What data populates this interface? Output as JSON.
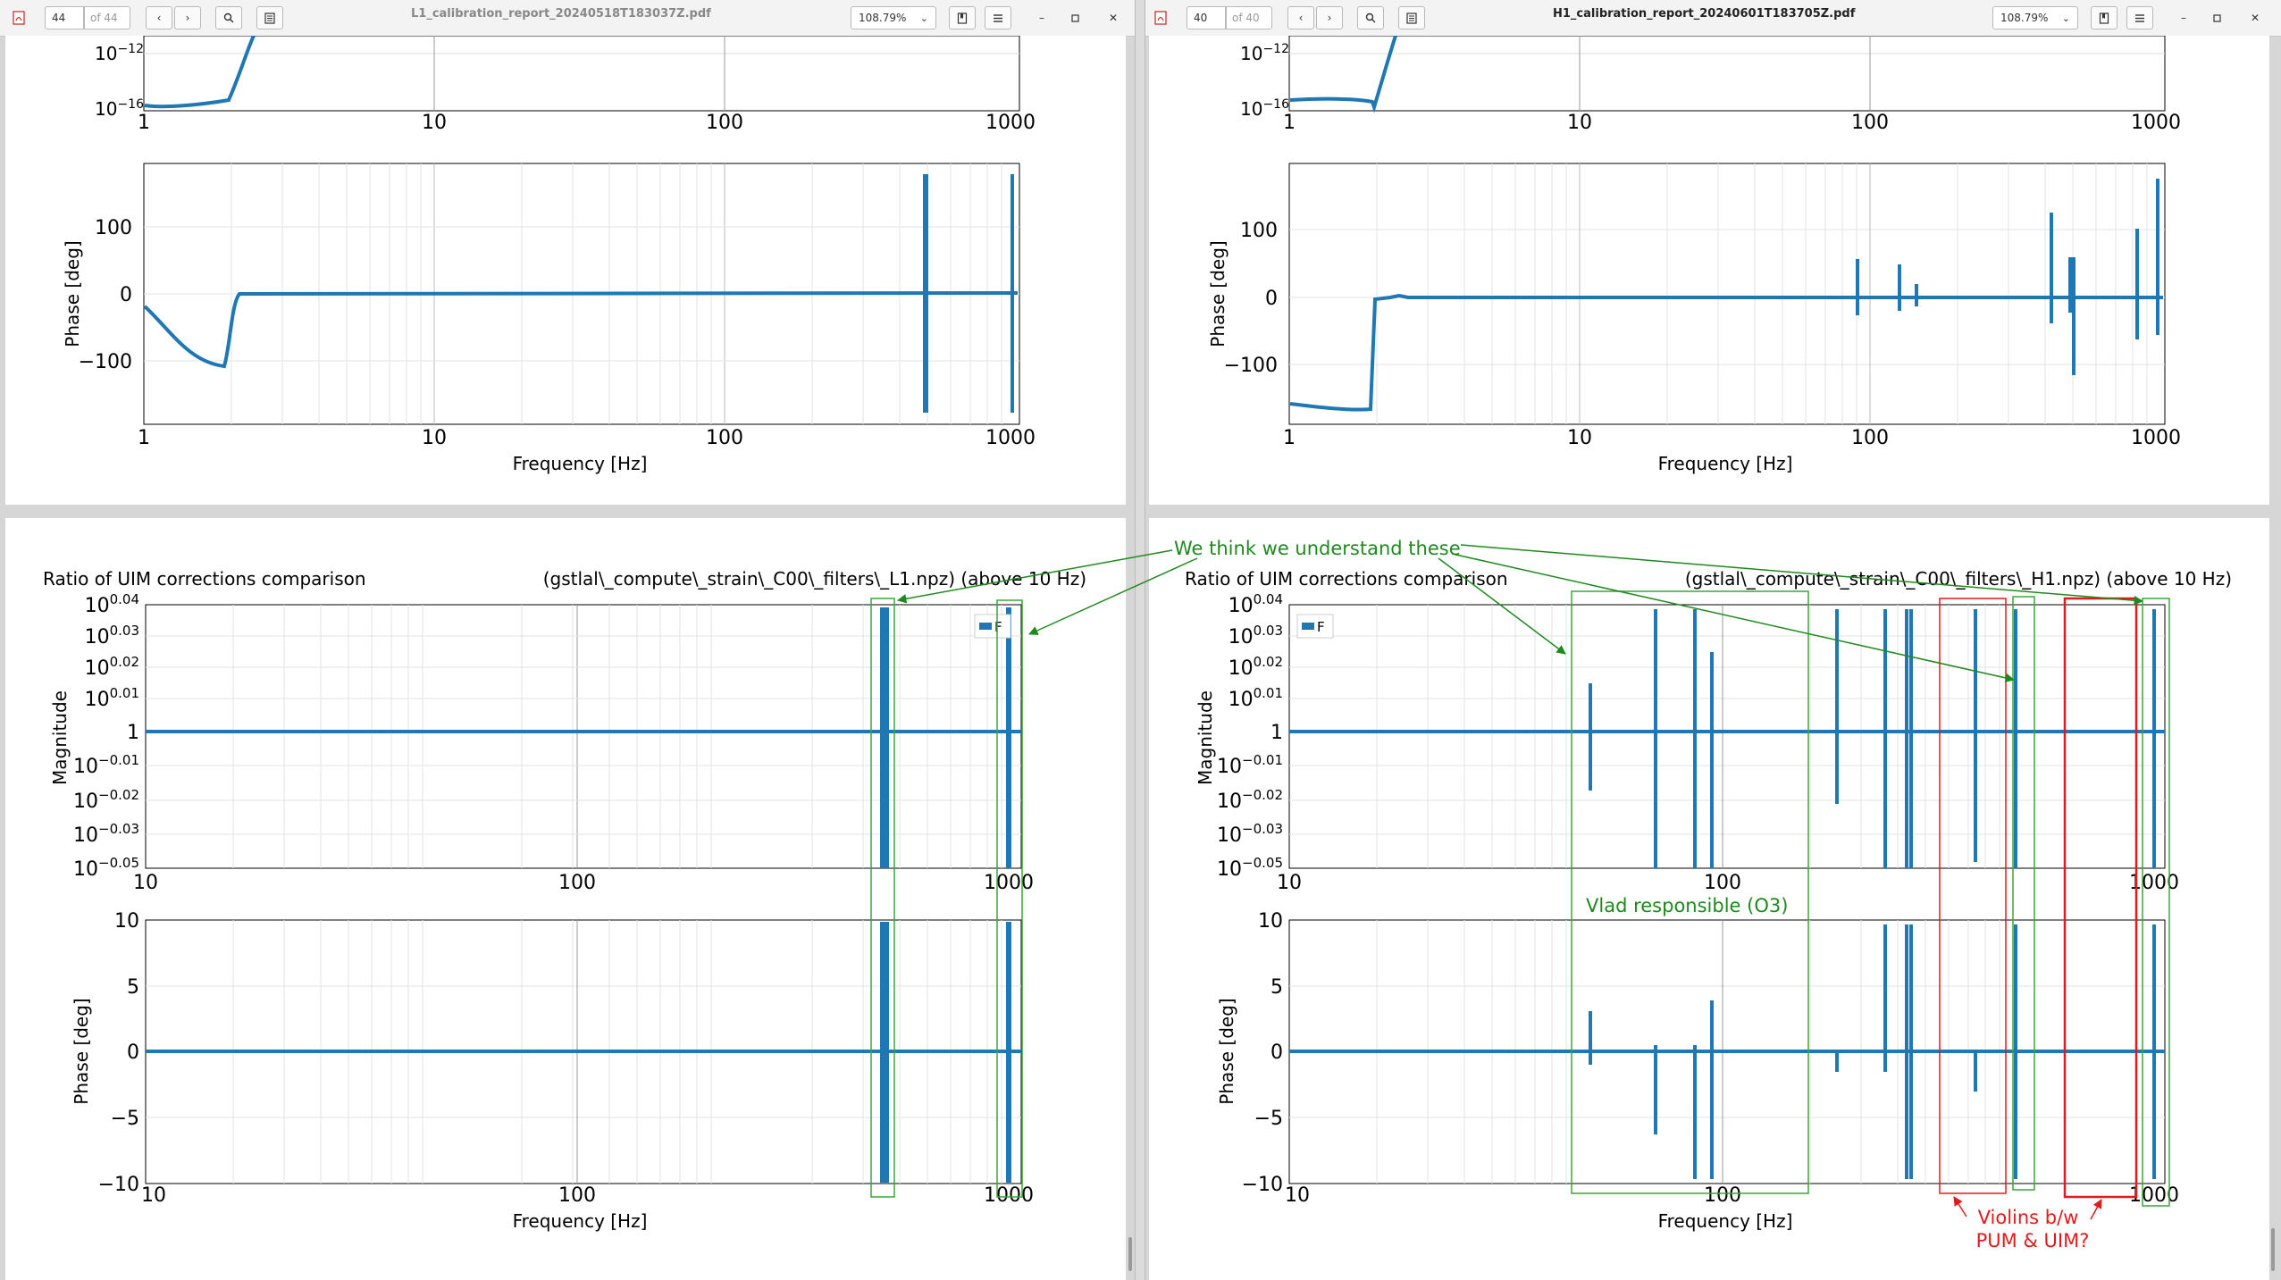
{
  "left": {
    "page_number": "44",
    "page_count": "of 44",
    "filename": "L1_calibration_report_20240518T183037Z.pdf",
    "zoom": "108.79%",
    "top_plot": {
      "mag_ticks": [
        "10",
        "10",
        "−12",
        "−16"
      ],
      "x_ticks": [
        "1",
        "10",
        "100",
        "1000"
      ],
      "phase_ylabel": "Phase [deg]",
      "phase_ticks": [
        "100",
        "0",
        "−100"
      ],
      "xlabel": "Frequency [Hz]"
    },
    "bottom_plot": {
      "title_left": "Ratio of UIM corrections comparison",
      "title_right": "(gstlal\\_compute\\_strain\\_C00\\_filters\\_L1.npz) (above 10 Hz)",
      "legend": "F",
      "mag_ylabel": "Magnitude",
      "mag_ticks": [
        "0.04",
        "0.03",
        "0.02",
        "0.01",
        "1",
        "−0.01",
        "−0.02",
        "−0.03",
        "−0.05"
      ],
      "x_ticks": [
        "10",
        "100",
        "1000"
      ],
      "phase_ylabel": "Phase [deg]",
      "phase_ticks": [
        "10",
        "5",
        "0",
        "−5",
        "−10"
      ],
      "xlabel": "Frequency [Hz]"
    }
  },
  "right": {
    "page_number": "40",
    "page_count": "of 40",
    "filename": "H1_calibration_report_20240601T183705Z.pdf",
    "zoom": "108.79%",
    "top_plot": {
      "x_ticks": [
        "1",
        "10",
        "100",
        "1000"
      ],
      "phase_ylabel": "Phase [deg]",
      "phase_ticks": [
        "100",
        "0",
        "−100"
      ],
      "xlabel": "Frequency [Hz]"
    },
    "bottom_plot": {
      "title_left": "Ratio of UIM corrections comparison",
      "title_right": "(gstlal\\_compute\\_strain\\_C00\\_filters\\_H1.npz) (above 10 Hz)",
      "legend": "F",
      "mag_ylabel": "Magnitude",
      "x_ticks": [
        "10",
        "100",
        "1000"
      ],
      "phase_ylabel": "Phase [deg]",
      "xlabel": "Frequency [Hz]"
    }
  },
  "annotations": {
    "green_label": "We think we understand these",
    "vlad_label": "Vlad responsible (O3)",
    "violins_line1": "Violins b/w",
    "violins_line2": "PUM & UIM?",
    "green_color": "#1e8a1e",
    "red_color": "#e01b1b"
  },
  "colors": {
    "trace": "#1f77b4",
    "grid": "#dddddd"
  },
  "chart_data": [
    {
      "type": "line",
      "title": "",
      "xlabel": "Frequency [Hz]",
      "ylabel": "Phase [deg]",
      "xscale": "log",
      "xlim": [
        1,
        1000
      ],
      "ylim": [
        -190,
        190
      ],
      "series": [
        {
          "x": [
            1,
            1.3,
            1.6,
            1.9,
            2.0,
            2.5,
            500,
            520,
            540,
            990,
            1000
          ],
          "y": [
            -25,
            -80,
            -108,
            -110,
            0,
            0,
            0,
            180,
            -180,
            0,
            180
          ]
        }
      ]
    },
    {
      "type": "line",
      "title": "",
      "xlabel": "Frequency [Hz]",
      "ylabel": "Magnitude",
      "xscale": "log",
      "xlim": [
        10,
        1000
      ],
      "series": [
        {
          "x": [
            10,
            510,
            525,
            1000
          ],
          "y": [
            1,
            1,
            1,
            1
          ]
        }
      ]
    },
    {
      "type": "line",
      "title": "",
      "xlabel": "Frequency [Hz]",
      "ylabel": "Phase [deg]",
      "xscale": "log",
      "xlim": [
        1,
        1000
      ],
      "ylim": [
        -190,
        190
      ],
      "series": [
        {
          "x": [
            1,
            1.9,
            2.0,
            2.5,
            93,
            130,
            150,
            450,
            510,
            880,
            1000
          ],
          "y": [
            -160,
            -170,
            -2,
            0,
            50,
            45,
            15,
            120,
            -120,
            95,
            170
          ]
        }
      ]
    },
    {
      "type": "line",
      "title": "",
      "xlabel": "Frequency [Hz]",
      "ylabel": "Phase [deg]",
      "xscale": "log",
      "xlim": [
        10,
        1000
      ],
      "ylim": [
        -10,
        10
      ],
      "series": [
        {
          "x": [
            10,
            46,
            90,
            125,
            140,
            300,
            360,
            400,
            500,
            580,
            870,
            1000
          ],
          "y": [
            0,
            3,
            -6,
            -10,
            10,
            -3,
            10,
            -10,
            10,
            -3,
            10,
            0
          ]
        }
      ]
    }
  ]
}
